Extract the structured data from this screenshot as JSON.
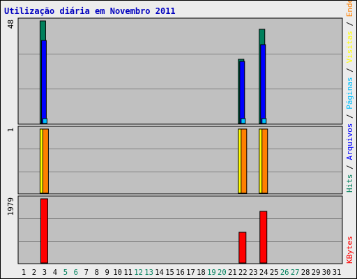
{
  "title": "Utilização diária em Novembro 2011",
  "colors": {
    "title": "#0000c0",
    "panel_bg": "#c0c0c0",
    "grid": "#808080",
    "hits": "#00805c",
    "files": "#0000ff",
    "pages": "#00c0ff",
    "visits": "#ffff00",
    "sites": "#ff8000",
    "kbytes": "#ff0000",
    "weekday": "#000000",
    "weekend": "#00805c"
  },
  "chart_data": {
    "type": "bar",
    "title": "Utilização diária em Novembro 2011",
    "days": [
      "1",
      "2",
      "3",
      "4",
      "5",
      "6",
      "7",
      "8",
      "9",
      "10",
      "11",
      "12",
      "13",
      "14",
      "15",
      "16",
      "17",
      "18",
      "19",
      "20",
      "21",
      "22",
      "23",
      "24",
      "25",
      "26",
      "27",
      "28",
      "29",
      "30",
      "31"
    ],
    "weekend_days": [
      "5",
      "6",
      "12",
      "13",
      "19",
      "20",
      "26",
      "27"
    ],
    "grid": true,
    "panels": [
      {
        "id": "requests",
        "max_label": "48",
        "ylim": [
          0,
          48
        ],
        "series": [
          {
            "name": "Hits",
            "color": "#00805c",
            "values": [
              0,
              0,
              48,
              0,
              0,
              0,
              0,
              0,
              0,
              0,
              0,
              0,
              0,
              0,
              0,
              0,
              0,
              0,
              0,
              0,
              0,
              30,
              0,
              44,
              0,
              0,
              0,
              0,
              0,
              0,
              0
            ]
          },
          {
            "name": "Arquivos",
            "color": "#0000ff",
            "values": [
              0,
              0,
              39,
              0,
              0,
              0,
              0,
              0,
              0,
              0,
              0,
              0,
              0,
              0,
              0,
              0,
              0,
              0,
              0,
              0,
              0,
              29,
              0,
              37,
              0,
              0,
              0,
              0,
              0,
              0,
              0
            ]
          },
          {
            "name": "Páginas",
            "color": "#00c0ff",
            "values": [
              0,
              0,
              2,
              0,
              0,
              0,
              0,
              0,
              0,
              0,
              0,
              0,
              0,
              0,
              0,
              0,
              0,
              0,
              0,
              0,
              0,
              2,
              0,
              2,
              0,
              0,
              0,
              0,
              0,
              0,
              0
            ]
          }
        ]
      },
      {
        "id": "visits",
        "max_label": "1",
        "ylim": [
          0,
          1
        ],
        "series": [
          {
            "name": "Visitas",
            "color": "#ffff00",
            "values": [
              0,
              0,
              1,
              0,
              0,
              0,
              0,
              0,
              0,
              0,
              0,
              0,
              0,
              0,
              0,
              0,
              0,
              0,
              0,
              0,
              0,
              1,
              0,
              1,
              0,
              0,
              0,
              0,
              0,
              0,
              0
            ]
          },
          {
            "name": "Endereços",
            "color": "#ff8000",
            "values": [
              0,
              0,
              1,
              0,
              0,
              0,
              0,
              0,
              0,
              0,
              0,
              0,
              0,
              0,
              0,
              0,
              0,
              0,
              0,
              0,
              0,
              1,
              0,
              1,
              0,
              0,
              0,
              0,
              0,
              0,
              0
            ]
          }
        ]
      },
      {
        "id": "kbytes",
        "max_label": "1979",
        "ylim": [
          0,
          1979
        ],
        "series": [
          {
            "name": "KBytes",
            "color": "#ff0000",
            "values": [
              0,
              0,
              1979,
              0,
              0,
              0,
              0,
              0,
              0,
              0,
              0,
              0,
              0,
              0,
              0,
              0,
              0,
              0,
              0,
              0,
              0,
              950,
              0,
              1590,
              0,
              0,
              0,
              0,
              0,
              0,
              0
            ]
          }
        ]
      }
    ],
    "legend_top": [
      {
        "text": "Hits",
        "color": "#00805c"
      },
      {
        "text": " / ",
        "color": "#000000"
      },
      {
        "text": "Arquivos",
        "color": "#0000ff"
      },
      {
        "text": " / ",
        "color": "#000000"
      },
      {
        "text": "Páginas",
        "color": "#00c0ff"
      },
      {
        "text": " / ",
        "color": "#000000"
      },
      {
        "text": "Visitas",
        "color": "#ffff00"
      },
      {
        "text": " / ",
        "color": "#000000"
      },
      {
        "text": "Endereços",
        "color": "#ff8000"
      }
    ],
    "legend_bottom": [
      {
        "text": "KBytes",
        "color": "#ff0000"
      }
    ]
  }
}
